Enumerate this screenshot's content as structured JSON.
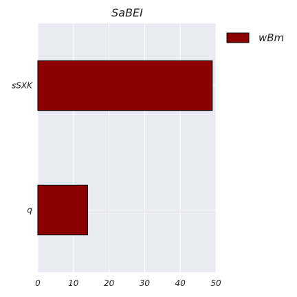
{
  "chart_data": {
    "type": "bar",
    "orientation": "horizontal",
    "title": "SaBEI",
    "xlabel": "",
    "ylabel": "",
    "categories": [
      "sSXK",
      "q"
    ],
    "series": [
      {
        "name": "wBm",
        "values": [
          49,
          14
        ],
        "color": "#8b0000"
      }
    ],
    "xlim": [
      0,
      50
    ],
    "x_ticks": [
      "0",
      "10",
      "20",
      "30",
      "40",
      "50"
    ],
    "grid": true,
    "legend_position": "top-right outside",
    "plot_background": "#eaeaf2",
    "gridline_color": "#ffffff",
    "bar_edge_color": "#000000"
  }
}
